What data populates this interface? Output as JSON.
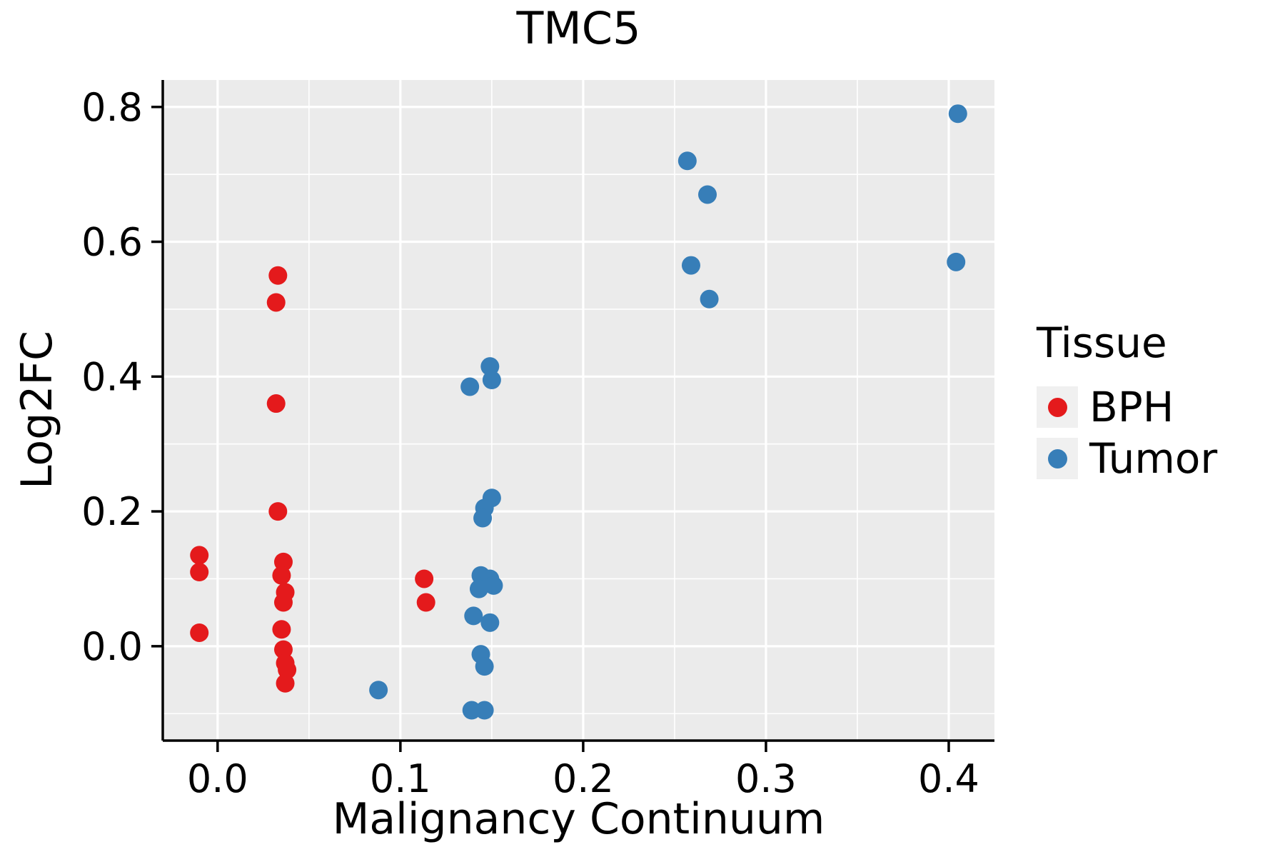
{
  "chart_data": {
    "type": "scatter",
    "title": "TMC5",
    "xlabel": "Malignancy Continuum",
    "ylabel": "Log2FC",
    "xlim": [
      -0.03,
      0.425
    ],
    "ylim": [
      -0.14,
      0.84
    ],
    "x_ticks": [
      0.0,
      0.1,
      0.2,
      0.3,
      0.4
    ],
    "y_ticks": [
      0.0,
      0.2,
      0.4,
      0.6,
      0.8
    ],
    "x_minor_ticks": [
      0.05,
      0.15,
      0.25,
      0.35
    ],
    "y_minor_ticks": [
      -0.1,
      0.1,
      0.3,
      0.5,
      0.7
    ],
    "grid": true,
    "legend": {
      "title": "Tissue",
      "position": "right"
    },
    "style": {
      "panel_background": "#ebebeb",
      "grid_color": "#ffffff",
      "axis_color": "#000000",
      "point_radius": 13
    },
    "series": [
      {
        "name": "BPH",
        "color": "#e41a1c",
        "points": [
          [
            -0.01,
            0.135
          ],
          [
            -0.01,
            0.11
          ],
          [
            -0.01,
            0.02
          ],
          [
            0.033,
            0.55
          ],
          [
            0.032,
            0.51
          ],
          [
            0.032,
            0.36
          ],
          [
            0.033,
            0.2
          ],
          [
            0.036,
            0.125
          ],
          [
            0.035,
            0.105
          ],
          [
            0.037,
            0.08
          ],
          [
            0.036,
            0.065
          ],
          [
            0.035,
            0.025
          ],
          [
            0.036,
            -0.005
          ],
          [
            0.037,
            -0.025
          ],
          [
            0.038,
            -0.035
          ],
          [
            0.037,
            -0.055
          ],
          [
            0.113,
            0.1
          ],
          [
            0.114,
            0.065
          ]
        ]
      },
      {
        "name": "Tumor",
        "color": "#377eb8",
        "points": [
          [
            0.088,
            -0.065
          ],
          [
            0.138,
            0.385
          ],
          [
            0.149,
            0.415
          ],
          [
            0.15,
            0.395
          ],
          [
            0.15,
            0.22
          ],
          [
            0.146,
            0.205
          ],
          [
            0.145,
            0.19
          ],
          [
            0.144,
            0.105
          ],
          [
            0.149,
            0.1
          ],
          [
            0.151,
            0.09
          ],
          [
            0.143,
            0.085
          ],
          [
            0.14,
            0.045
          ],
          [
            0.149,
            0.035
          ],
          [
            0.144,
            -0.012
          ],
          [
            0.146,
            -0.03
          ],
          [
            0.139,
            -0.095
          ],
          [
            0.146,
            -0.095
          ],
          [
            0.257,
            0.72
          ],
          [
            0.268,
            0.67
          ],
          [
            0.259,
            0.565
          ],
          [
            0.269,
            0.515
          ],
          [
            0.405,
            0.79
          ],
          [
            0.404,
            0.57
          ]
        ]
      }
    ]
  }
}
